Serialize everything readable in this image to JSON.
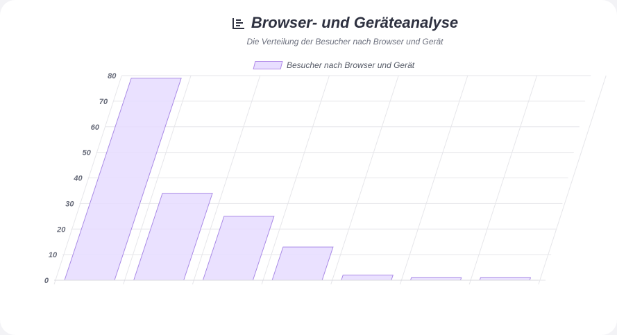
{
  "header": {
    "title": "Browser- und Geräteanalyse",
    "subtitle": "Die Verteilung der Besucher nach Browser und Gerät",
    "title_icon": "bar-chart-list-icon"
  },
  "colors": {
    "bar_fill": "#e6dcff",
    "bar_stroke": "#a98ae6",
    "grid": "#e6e6ea",
    "title": "#2e3140"
  },
  "chart_data": {
    "type": "bar",
    "title": "Browser- und Geräteanalyse",
    "subtitle": "Die Verteilung der Besucher nach Browser und Gerät",
    "categories": [
      "",
      "",
      "",
      "",
      "",
      "",
      ""
    ],
    "series": [
      {
        "name": "Besucher nach Browser und Gerät",
        "values": [
          79,
          34,
          25,
          13,
          2,
          1,
          1
        ]
      }
    ],
    "yticks": [
      0,
      10,
      20,
      30,
      40,
      50,
      60,
      70,
      80
    ],
    "ylim": [
      0,
      80
    ],
    "grid": true,
    "legend": "top-center"
  }
}
